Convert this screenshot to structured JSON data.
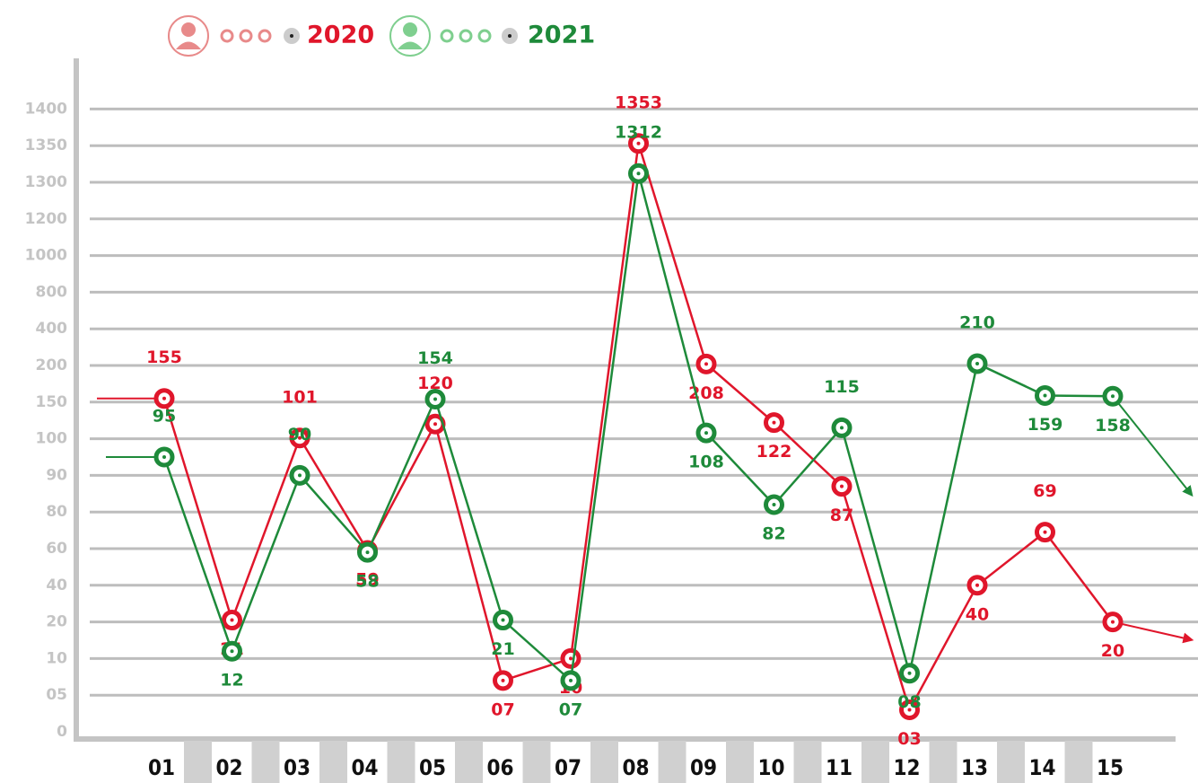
{
  "chart_data": {
    "type": "line",
    "categories": [
      "01",
      "02",
      "03",
      "04",
      "05",
      "06",
      "07",
      "08",
      "09",
      "10",
      "11",
      "12",
      "13",
      "14",
      "15"
    ],
    "series": [
      {
        "name": "2020",
        "color": "#e0162b",
        "values": [
          155,
          21,
          101,
          59,
          120,
          7,
          10,
          1353,
          208,
          122,
          87,
          3,
          40,
          69,
          20
        ],
        "value_labels": [
          "155",
          "21",
          "101",
          "59",
          "120",
          "07",
          "10",
          "1353",
          "208",
          "122",
          "87",
          "03",
          "40",
          "69",
          "20"
        ]
      },
      {
        "name": "2021",
        "color": "#1e8a3a",
        "values": [
          95,
          12,
          90,
          58,
          154,
          21,
          7,
          1312,
          108,
          82,
          115,
          8,
          210,
          159,
          158
        ],
        "value_labels": [
          "95",
          "12",
          "90",
          "58",
          "154",
          "21",
          "07",
          "1312",
          "108",
          "82",
          "115",
          "08",
          "210",
          "159",
          "158"
        ]
      }
    ],
    "ylim": [
      0,
      1400
    ],
    "yticks": [
      0,
      {
        "value": 5,
        "label": "05"
      },
      10,
      20,
      40,
      60,
      80,
      90,
      100,
      150,
      200,
      400,
      800,
      1000,
      1200,
      1300,
      1350,
      1400
    ],
    "grid": true
  }
}
